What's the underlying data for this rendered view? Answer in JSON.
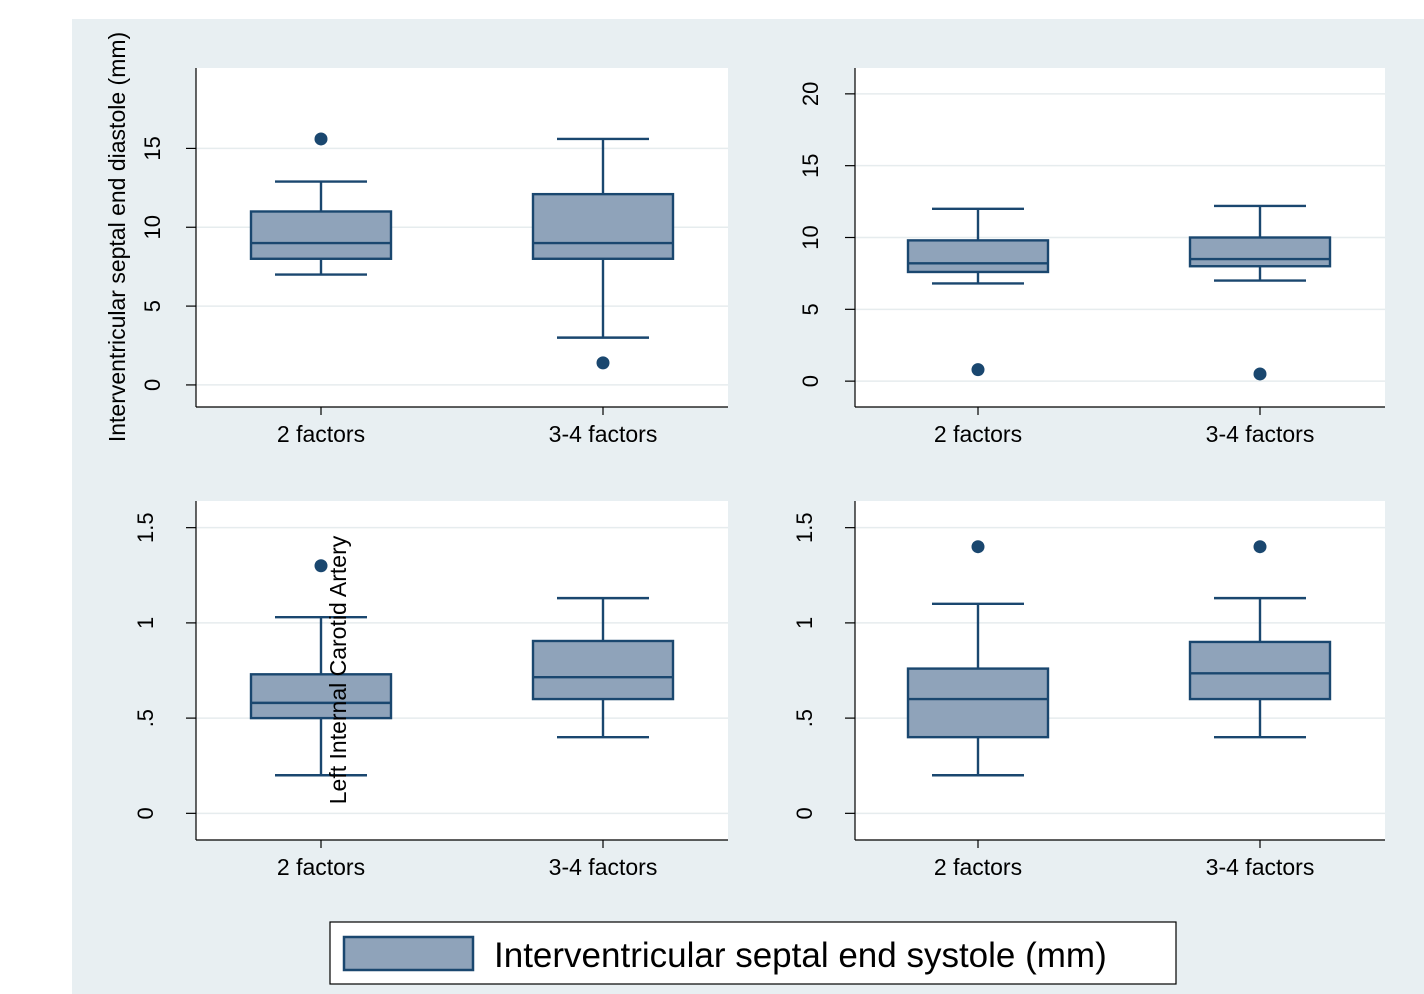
{
  "figure": {
    "background_color": "#e8eff2",
    "plot_color": "#ffffff",
    "box_fill": "#8fa3ba",
    "box_stroke": "#1a476f",
    "grid_color": "#e6ecee",
    "legend_label": "Interventricular septal end systole (mm)"
  },
  "chart_data": [
    {
      "type": "box",
      "panel": "top-left",
      "ylabel": "Interventricular septal end diastole (mm)",
      "ylim": [
        -1.4,
        20.1
      ],
      "yticks": [
        0,
        5,
        10,
        15
      ],
      "ytick_labels": [
        "0",
        "5",
        "10",
        "15"
      ],
      "categories": [
        "2 factors",
        "3-4 factors"
      ],
      "grid": true,
      "boxes": [
        {
          "min": 7.0,
          "q1": 8.0,
          "median": 9.0,
          "q3": 11.0,
          "max": 12.9,
          "outliers": [
            15.6
          ]
        },
        {
          "min": 3.0,
          "q1": 8.0,
          "median": 9.0,
          "q3": 12.1,
          "max": 15.6,
          "outliers": [
            1.4
          ]
        }
      ]
    },
    {
      "type": "box",
      "panel": "top-right",
      "ylabel": "",
      "ylim": [
        -1.8,
        21.8
      ],
      "yticks": [
        0,
        5,
        10,
        15,
        20
      ],
      "ytick_labels": [
        "0",
        "5",
        "10",
        "15",
        "20"
      ],
      "categories": [
        "2 factors",
        "3-4 factors"
      ],
      "grid": true,
      "boxes": [
        {
          "min": 6.8,
          "q1": 7.6,
          "median": 8.2,
          "q3": 9.8,
          "max": 12.0,
          "outliers": [
            0.8
          ]
        },
        {
          "min": 7.0,
          "q1": 8.0,
          "median": 8.5,
          "q3": 10.0,
          "max": 12.2,
          "outliers": [
            0.5
          ]
        }
      ]
    },
    {
      "type": "box",
      "panel": "bottom-left",
      "ylabel": "Left Internal Carotid Artery",
      "ylim": [
        -0.14,
        1.64
      ],
      "yticks": [
        0,
        0.5,
        1,
        1.5
      ],
      "ytick_labels": [
        "0",
        ".5",
        "1",
        "1.5"
      ],
      "categories": [
        "2 factors",
        "3-4 factors"
      ],
      "grid": true,
      "boxes": [
        {
          "min": 0.2,
          "q1": 0.5,
          "median": 0.58,
          "q3": 0.73,
          "max": 1.03,
          "outliers": [
            1.3
          ]
        },
        {
          "min": 0.4,
          "q1": 0.6,
          "median": 0.715,
          "q3": 0.905,
          "max": 1.13,
          "outliers": []
        }
      ]
    },
    {
      "type": "box",
      "panel": "bottom-right",
      "ylabel": "",
      "ylim": [
        -0.14,
        1.64
      ],
      "yticks": [
        0,
        0.5,
        1,
        1.5
      ],
      "ytick_labels": [
        "0",
        ".5",
        "1",
        "1.5"
      ],
      "categories": [
        "2 factors",
        "3-4 factors"
      ],
      "grid": true,
      "boxes": [
        {
          "min": 0.2,
          "q1": 0.4,
          "median": 0.6,
          "q3": 0.76,
          "max": 1.1,
          "outliers": [
            1.4
          ]
        },
        {
          "min": 0.4,
          "q1": 0.6,
          "median": 0.735,
          "q3": 0.9,
          "max": 1.13,
          "outliers": [
            1.4
          ]
        }
      ]
    }
  ]
}
